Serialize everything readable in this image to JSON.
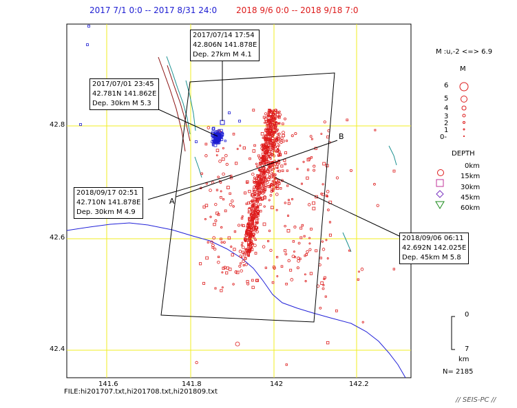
{
  "header": {
    "blue_range": "2017 7/1  0:0 -- 2017 8/31  24:0",
    "red_range": "2018  9/6  0:0 --  2018  9/18  7:0"
  },
  "axes": {
    "y_ticks": [
      "42.8",
      "42.6",
      "42.4"
    ],
    "x_ticks": [
      "141.6",
      "141.8",
      "142",
      "142.2"
    ]
  },
  "section": {
    "a_label": "A",
    "b_label": "B"
  },
  "callouts": [
    {
      "id": "c1",
      "lines": [
        "2017/07/14 17:54",
        "42.806N  141.878E",
        "Dep. 27km   M 4.1"
      ]
    },
    {
      "id": "c2",
      "lines": [
        "2017/07/01 23:45",
        "42.781N  141.862E",
        "Dep. 30km   M 5.3"
      ]
    },
    {
      "id": "c3",
      "lines": [
        "2018/09/17 02:51",
        "42.710N  141.878E",
        "Dep. 30km   M 4.9"
      ]
    },
    {
      "id": "c4",
      "lines": [
        "2018/09/06 06:11",
        "42.692N  142.025E",
        "Dep. 45km   M 5.8"
      ]
    }
  ],
  "legend": {
    "magnitude_range": "M :u,-2 <=> 6.9",
    "magnitude_title": "M",
    "magnitudes": [
      "6",
      "5",
      "4",
      "3",
      "2",
      "1",
      "0-"
    ],
    "depth_title": "DEPTH",
    "depths": [
      "0km",
      "15km",
      "30km",
      "45km",
      "60km"
    ],
    "scale_top": "0",
    "scale_bottom": "7",
    "scale_unit": "km",
    "count": "N=  2185"
  },
  "footer": {
    "files": "FILE:hi201707.txt,hi201708.txt,hi201809.txt",
    "credit": "// SEIS-PC //"
  },
  "colors": {
    "blue": "#1c1cd2",
    "red": "#dd1a1a",
    "grid": "#f2ee22",
    "coast": "#2020d8",
    "fault": "#8a1010",
    "river": "#1a9090"
  }
}
